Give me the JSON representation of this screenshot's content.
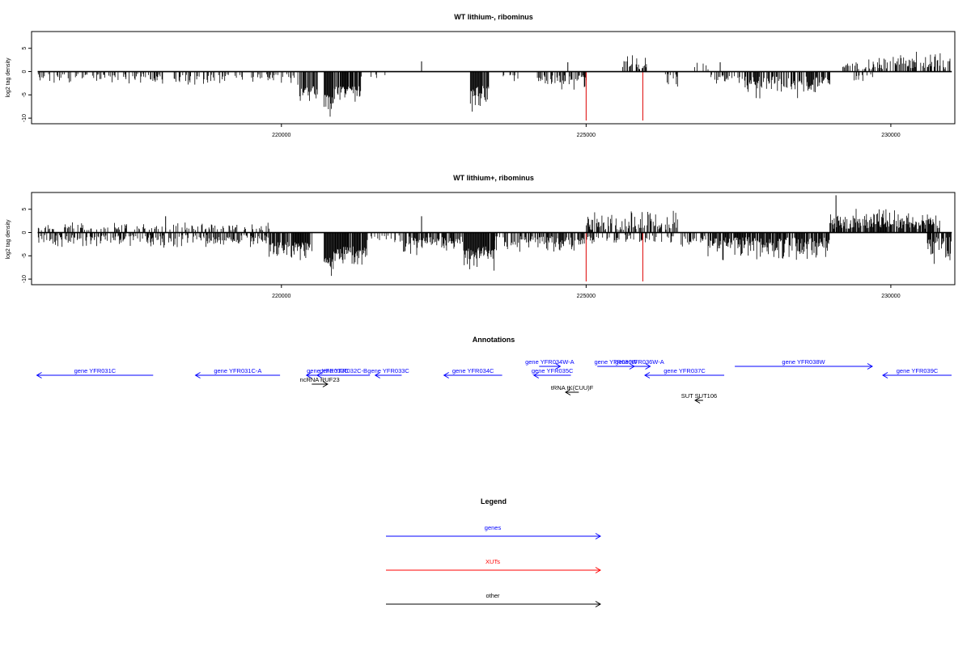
{
  "chart_data": [
    {
      "type": "bar",
      "title": "WT lithium-, ribominus",
      "ylabel": "log2 tag density",
      "xlabel": "",
      "xlim": [
        215900,
        231050
      ],
      "ylim": [
        -11.2,
        8.6
      ],
      "xticks": [
        220000,
        225000,
        230000
      ],
      "yticks": [
        -10,
        -5,
        0,
        5
      ],
      "grid": false,
      "segments": [
        {
          "from": 216000,
          "to": 218000,
          "sign": -1,
          "min": 0.5,
          "max": 3,
          "density": 0.35,
          "seed": 11
        },
        {
          "from": 218000,
          "to": 219000,
          "sign": -1,
          "min": 0.5,
          "max": 4,
          "density": 0.25,
          "seed": 12
        },
        {
          "from": 219000,
          "to": 220300,
          "sign": -1,
          "min": 0.5,
          "max": 3,
          "density": 0.3,
          "seed": 13
        },
        {
          "from": 220300,
          "to": 220600,
          "sign": -1,
          "min": 3,
          "max": 7,
          "density": 0.85,
          "seed": 14
        },
        {
          "from": 220700,
          "to": 220850,
          "sign": -1,
          "min": 5,
          "max": 10.5,
          "density": 1,
          "seed": 15
        },
        {
          "from": 220850,
          "to": 221300,
          "sign": -1,
          "min": 3,
          "max": 7.5,
          "density": 0.9,
          "seed": 16
        },
        {
          "from": 221300,
          "to": 221800,
          "sign": -1,
          "min": 0.5,
          "max": 2,
          "density": 0.1,
          "seed": 17
        },
        {
          "from": 223100,
          "to": 223400,
          "sign": -1,
          "min": 3,
          "max": 9,
          "density": 0.95,
          "seed": 18
        },
        {
          "from": 223600,
          "to": 223900,
          "sign": -1,
          "min": 0.5,
          "max": 3,
          "density": 0.3,
          "seed": 19
        },
        {
          "from": 224200,
          "to": 225000,
          "sign": -1,
          "min": 0.8,
          "max": 4,
          "density": 0.55,
          "seed": 20
        },
        {
          "from": 225600,
          "to": 226000,
          "sign": 1,
          "min": 0.5,
          "max": 4.2,
          "density": 0.6,
          "seed": 21
        },
        {
          "from": 226300,
          "to": 226500,
          "sign": -1,
          "min": 0.5,
          "max": 3.5,
          "density": 0.3,
          "seed": 22
        },
        {
          "from": 226700,
          "to": 227000,
          "sign": 1,
          "min": 0.5,
          "max": 2.5,
          "density": 0.2,
          "seed": 23
        },
        {
          "from": 227000,
          "to": 227600,
          "sign": -1,
          "min": 0.5,
          "max": 3,
          "density": 0.35,
          "seed": 24
        },
        {
          "from": 227600,
          "to": 229000,
          "sign": -1,
          "min": 1,
          "max": 6,
          "density": 0.7,
          "seed": 25
        },
        {
          "from": 229200,
          "to": 229800,
          "sign": 1,
          "min": 0.5,
          "max": 3,
          "density": 0.4,
          "seed": 26
        },
        {
          "from": 229800,
          "to": 231000,
          "sign": 1,
          "min": 0.5,
          "max": 4.5,
          "density": 0.55,
          "seed": 27
        },
        {
          "from": 229400,
          "to": 229700,
          "sign": -1,
          "min": 0.5,
          "max": 2.5,
          "density": 0.2,
          "seed": 28
        }
      ],
      "spikes": [
        {
          "x": 222300,
          "y": 2.2,
          "color": "black"
        },
        {
          "x": 224700,
          "y": 2,
          "color": "black"
        },
        {
          "x": 227200,
          "y": 2,
          "color": "black"
        },
        {
          "x": 225000,
          "y": -10.5,
          "color": "red"
        },
        {
          "x": 225930,
          "y": -10.5,
          "color": "red"
        }
      ]
    },
    {
      "type": "bar",
      "title": "WT lithium+, ribominus",
      "ylabel": "log2 tag density",
      "xlabel": "",
      "xlim": [
        215900,
        231050
      ],
      "ylim": [
        -11.2,
        8.6
      ],
      "xticks": [
        220000,
        225000,
        230000
      ],
      "yticks": [
        -10,
        -5,
        0,
        5
      ],
      "grid": false,
      "segments": [
        {
          "from": 216000,
          "to": 219800,
          "sign": -1,
          "min": 0.5,
          "max": 3.5,
          "density": 0.5,
          "seed": 31
        },
        {
          "from": 216000,
          "to": 219800,
          "sign": 1,
          "min": 0.5,
          "max": 2.5,
          "density": 0.25,
          "seed": 32
        },
        {
          "from": 219800,
          "to": 220500,
          "sign": -1,
          "min": 2,
          "max": 6.5,
          "density": 0.85,
          "seed": 33
        },
        {
          "from": 220700,
          "to": 220850,
          "sign": -1,
          "min": 5,
          "max": 10.5,
          "density": 1,
          "seed": 34
        },
        {
          "from": 220850,
          "to": 221400,
          "sign": -1,
          "min": 3,
          "max": 7.5,
          "density": 0.95,
          "seed": 35
        },
        {
          "from": 221400,
          "to": 222000,
          "sign": -1,
          "min": 0.5,
          "max": 3,
          "density": 0.3,
          "seed": 36
        },
        {
          "from": 222000,
          "to": 223000,
          "sign": -1,
          "min": 0.8,
          "max": 5,
          "density": 0.75,
          "seed": 37
        },
        {
          "from": 223000,
          "to": 223500,
          "sign": -1,
          "min": 3,
          "max": 8.5,
          "density": 0.95,
          "seed": 38
        },
        {
          "from": 223500,
          "to": 225000,
          "sign": -1,
          "min": 0.8,
          "max": 4.5,
          "density": 0.65,
          "seed": 39
        },
        {
          "from": 225000,
          "to": 226500,
          "sign": 1,
          "min": 0.5,
          "max": 5.5,
          "density": 0.6,
          "seed": 40
        },
        {
          "from": 225000,
          "to": 226500,
          "sign": -1,
          "min": 0.5,
          "max": 3,
          "density": 0.4,
          "seed": 41
        },
        {
          "from": 226500,
          "to": 227000,
          "sign": -1,
          "min": 0.5,
          "max": 4,
          "density": 0.4,
          "seed": 42
        },
        {
          "from": 227000,
          "to": 229000,
          "sign": -1,
          "min": 1,
          "max": 6.5,
          "density": 0.85,
          "seed": 43
        },
        {
          "from": 229000,
          "to": 230800,
          "sign": 1,
          "min": 0.8,
          "max": 5.5,
          "density": 0.85,
          "seed": 44
        },
        {
          "from": 230600,
          "to": 231000,
          "sign": -1,
          "min": 1,
          "max": 7,
          "density": 0.8,
          "seed": 45
        }
      ],
      "spikes": [
        {
          "x": 218100,
          "y": 3.5,
          "color": "black"
        },
        {
          "x": 222300,
          "y": 3.5,
          "color": "black"
        },
        {
          "x": 229100,
          "y": 8,
          "color": "black"
        },
        {
          "x": 225000,
          "y": -10.5,
          "color": "red"
        },
        {
          "x": 225930,
          "y": -10.5,
          "color": "red"
        }
      ]
    }
  ],
  "annotations": {
    "title": "Annotations",
    "features": [
      {
        "label": "gene YFR031C",
        "from": 216100,
        "to": 218300,
        "strand": "-",
        "color": "#0000ff",
        "row": 0
      },
      {
        "label": "gene YFR031C-A",
        "from": 219100,
        "to": 220700,
        "strand": "-",
        "color": "#0000ff",
        "row": 0
      },
      {
        "label": "gene YFR032C",
        "from": 221200,
        "to": 222000,
        "strand": "-",
        "color": "#0000ff",
        "row": 0
      },
      {
        "label": "gene YFR032C-B",
        "from": 221400,
        "to": 222400,
        "strand": "-",
        "color": "#0000ff",
        "row": 0
      },
      {
        "label": "gene YFR033C",
        "from": 222500,
        "to": 223000,
        "strand": "-",
        "color": "#0000ff",
        "row": 0
      },
      {
        "label": "gene YFR034C",
        "from": 223800,
        "to": 224900,
        "strand": "-",
        "color": "#0000ff",
        "row": 0
      },
      {
        "label": "gene YFR035C",
        "from": 225500,
        "to": 226200,
        "strand": "-",
        "color": "#0000ff",
        "row": 0
      },
      {
        "label": "gene YFR034W-A",
        "from": 225600,
        "to": 226000,
        "strand": "+",
        "color": "#0000ff",
        "row": -1
      },
      {
        "label": "gene YFR036W",
        "from": 226700,
        "to": 227400,
        "strand": "+",
        "color": "#0000ff",
        "row": -1
      },
      {
        "label": "gene YFR036W-A",
        "from": 227300,
        "to": 227700,
        "strand": "+",
        "color": "#0000ff",
        "row": -1
      },
      {
        "label": "gene YFR037C",
        "from": 227600,
        "to": 229100,
        "strand": "-",
        "color": "#0000ff",
        "row": 0
      },
      {
        "label": "gene YFR038W",
        "from": 229300,
        "to": 231900,
        "strand": "+",
        "color": "#0000ff",
        "row": -1
      },
      {
        "label": "gene YFR039C",
        "from": 232100,
        "to": 233400,
        "strand": "-",
        "color": "#0000ff",
        "row": 0
      },
      {
        "label": "ncRNA RUF23",
        "from": 221300,
        "to": 221600,
        "strand": "+",
        "color": "#000000",
        "row": 1
      },
      {
        "label": "tRNA tK(CUU)F",
        "from": 226100,
        "to": 226350,
        "strand": "-",
        "color": "#000000",
        "row": 2
      },
      {
        "label": "SUT SUT106",
        "from": 228550,
        "to": 228700,
        "strand": "-",
        "color": "#000000",
        "row": 3
      }
    ]
  },
  "legend": {
    "title": "Legend",
    "items": [
      {
        "label": "genes",
        "color": "#0000ff"
      },
      {
        "label": "XUTs",
        "color": "#ff0000"
      },
      {
        "label": "other",
        "color": "#000000"
      }
    ]
  }
}
